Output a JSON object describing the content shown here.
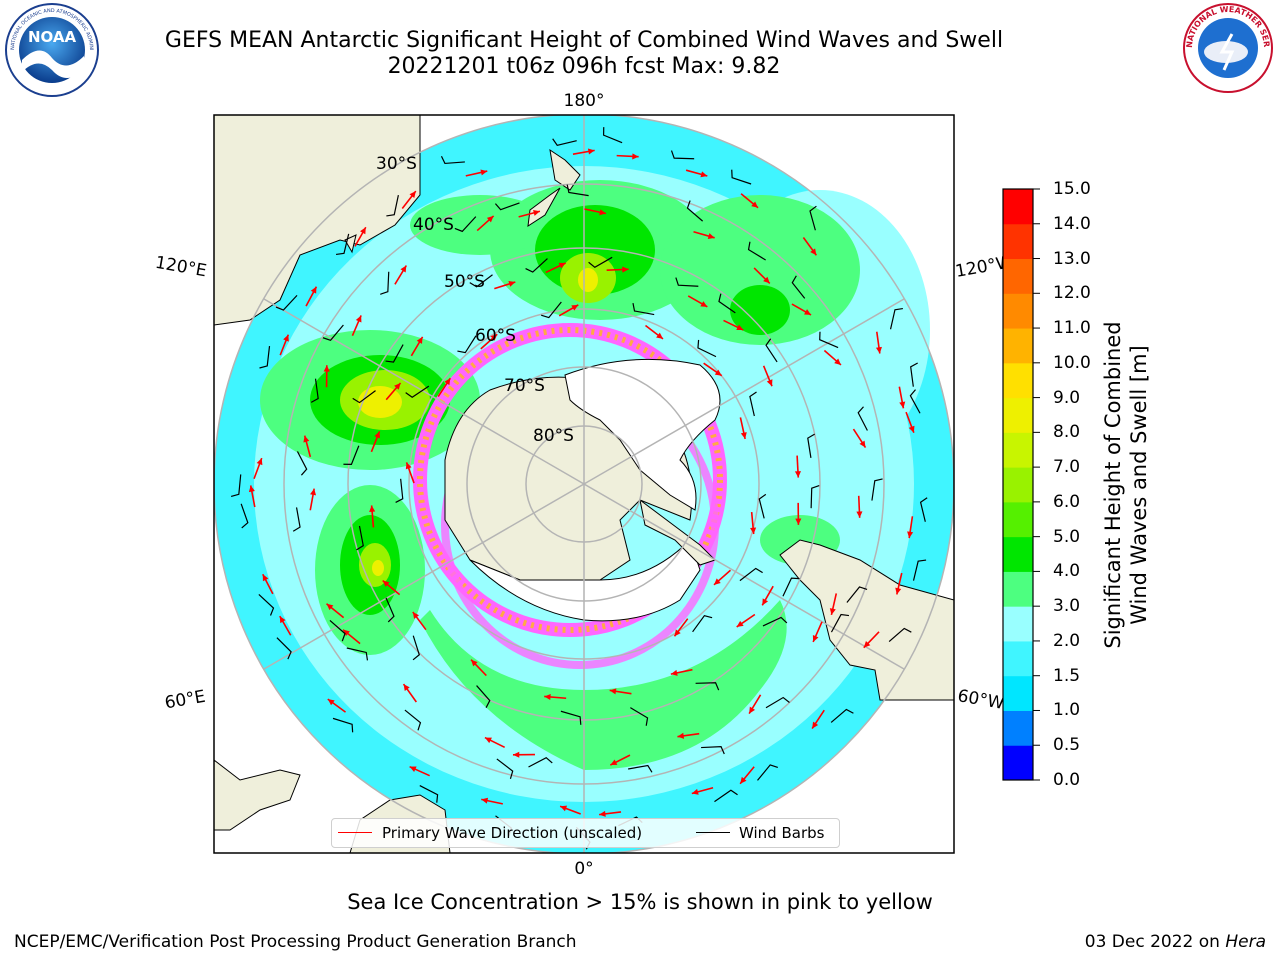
{
  "header": {
    "title_line1": "GEFS MEAN Antarctic Significant Height of Combined Wind Waves and Swell",
    "title_line2": "20221201 t06z 096h fcst   Max: 9.82"
  },
  "logos": {
    "left": "NOAA",
    "left_ring": "NATIONAL OCEANIC AND ATMOSPHERIC ADMINISTRATION · U.S. DEPARTMENT OF COMMERCE",
    "right_ring": "NATIONAL WEATHER SERVICE"
  },
  "map": {
    "longitude_labels": {
      "top": "180°",
      "bottom": "0°",
      "upper_left": "120°E",
      "upper_right": "120°W",
      "lower_left": "60°E",
      "lower_right": "60°W"
    },
    "latitude_labels": [
      "30°S",
      "40°S",
      "50°S",
      "60°S",
      "70°S",
      "80°S"
    ],
    "colors": {
      "land": "#efefdb",
      "ice_shelf": "#ffffff",
      "sea_ice": "#ff66ff",
      "graticule": "#b4b4b4",
      "wave_arrow": "#ff0000",
      "wind_barb": "#000000"
    },
    "legend": {
      "wave_label": "Primary Wave Direction (unscaled)",
      "barb_label": "Wind Barbs"
    }
  },
  "colorbar": {
    "label_line1": "Significant Height of Combined",
    "label_line2": "Wind Waves and Swell [m]",
    "ticks": [
      "0.0",
      "0.5",
      "1.0",
      "1.5",
      "2.0",
      "3.0",
      "4.0",
      "5.0",
      "6.0",
      "7.0",
      "8.0",
      "9.0",
      "10.0",
      "11.0",
      "12.0",
      "13.0",
      "14.0",
      "15.0"
    ],
    "colors": [
      "#0000ff",
      "#0080ff",
      "#00e6ff",
      "#40f5ff",
      "#99ffff",
      "#4dff80",
      "#00e600",
      "#55f000",
      "#99f200",
      "#c8f500",
      "#eef000",
      "#ffe000",
      "#ffb300",
      "#ff8a00",
      "#ff6600",
      "#ff3300",
      "#ff0000"
    ]
  },
  "notes": {
    "sea_ice": "Sea Ice Concentration > 15% is shown in pink to yellow"
  },
  "footer": {
    "left": "NCEP/EMC/Verification Post Processing Product Generation Branch",
    "right_prefix": "03 Dec 2022 on ",
    "right_machine": "Hera"
  }
}
